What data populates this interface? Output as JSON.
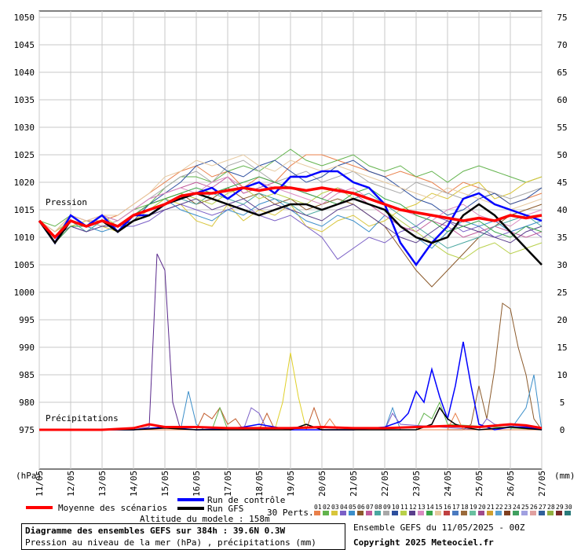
{
  "chart_data": {
    "type": "line",
    "left_axis_label": "(hPa)",
    "right_axis_label": "(mm)",
    "pressure_ticks": [
      975,
      980,
      985,
      990,
      995,
      1000,
      1005,
      1010,
      1015,
      1020,
      1025,
      1030,
      1035,
      1040,
      1045,
      1050
    ],
    "precip_ticks": [
      0,
      5,
      10,
      15,
      20,
      25,
      30,
      35,
      40,
      45,
      50,
      55,
      60,
      65,
      70,
      75
    ],
    "ylim_pressure": [
      975,
      1050
    ],
    "ylim_precip": [
      0,
      75
    ],
    "x_dates": [
      "11/05",
      "12/05",
      "13/05",
      "14/05",
      "15/05",
      "16/05",
      "17/05",
      "18/05",
      "19/05",
      "20/05",
      "21/05",
      "22/05",
      "23/05",
      "24/05",
      "25/05",
      "26/05",
      "27/05"
    ],
    "label_pression": "Pression",
    "label_precip": "Précipitations",
    "x_days_axis": [
      0,
      16
    ],
    "mean_pressure": {
      "x": [
        0,
        0.5,
        1,
        1.5,
        2,
        2.5,
        3,
        3.5,
        4,
        4.5,
        5,
        5.5,
        6,
        6.5,
        7,
        7.5,
        8,
        8.5,
        9,
        9.5,
        10,
        10.5,
        11,
        11.5,
        12,
        12.5,
        13,
        13.5,
        14,
        14.5,
        15,
        15.5,
        16
      ],
      "y": [
        1013,
        1010,
        1013,
        1012,
        1013,
        1012,
        1014,
        1015,
        1016,
        1017.5,
        1018,
        1018,
        1018.5,
        1019,
        1018.5,
        1019,
        1019,
        1018.5,
        1019,
        1018.5,
        1018,
        1017,
        1016,
        1015,
        1014.5,
        1014,
        1013.5,
        1013,
        1013.5,
        1013,
        1014,
        1013.5,
        1014
      ]
    },
    "control_pressure": {
      "x": [
        0,
        0.5,
        1,
        1.5,
        2,
        2.5,
        3,
        3.5,
        4,
        4.5,
        5,
        5.5,
        6,
        6.5,
        7,
        7.5,
        8,
        8.5,
        9,
        9.5,
        10,
        10.5,
        11,
        11.5,
        12,
        12.5,
        13,
        13.5,
        14,
        14.5,
        15,
        15.5,
        16
      ],
      "y": [
        1013,
        1009,
        1014,
        1012,
        1014,
        1011,
        1014,
        1014,
        1016,
        1017,
        1018,
        1019,
        1017,
        1019,
        1020,
        1018,
        1021,
        1021,
        1022,
        1022,
        1020,
        1019,
        1016,
        1009,
        1005,
        1009,
        1012,
        1017,
        1018,
        1016,
        1015,
        1014,
        1013
      ]
    },
    "gfs_pressure": {
      "x": [
        0,
        0.5,
        1,
        1.5,
        2,
        2.5,
        3,
        3.5,
        4,
        4.5,
        5,
        5.5,
        6,
        6.5,
        7,
        7.5,
        8,
        8.5,
        9,
        9.5,
        10,
        10.5,
        11,
        11.5,
        12,
        12.5,
        13,
        13.5,
        14,
        14.5,
        15,
        15.5,
        16
      ],
      "y": [
        1013,
        1009,
        1013,
        1012,
        1013,
        1011,
        1013,
        1014,
        1016,
        1017,
        1018,
        1017,
        1016,
        1015,
        1014,
        1015,
        1016,
        1016,
        1015,
        1016,
        1017,
        1016,
        1015,
        1012,
        1010,
        1009,
        1010,
        1014,
        1016,
        1014,
        1011,
        1008,
        1005
      ]
    },
    "control_precip": {
      "x": [
        0,
        2,
        3,
        4,
        5,
        6,
        6.5,
        7,
        7.5,
        8,
        10,
        11,
        11.5,
        11.75,
        12,
        12.25,
        12.5,
        12.75,
        13,
        13.25,
        13.5,
        13.75,
        14,
        14.5,
        15,
        15.5,
        16
      ],
      "y": [
        0,
        0,
        0,
        0.5,
        0,
        0.2,
        0.5,
        1,
        0.5,
        0,
        0,
        0.5,
        1.5,
        3,
        7,
        5,
        11,
        6,
        2,
        8,
        16,
        8,
        1,
        0,
        0.5,
        0.5,
        0
      ]
    },
    "gfs_precip": {
      "x": [
        0,
        2,
        3,
        4,
        5,
        6,
        7,
        8,
        8.5,
        9,
        10,
        11,
        12,
        12.5,
        12.75,
        13,
        13.25,
        13.5,
        14,
        15,
        16
      ],
      "y": [
        0,
        0,
        0,
        0.3,
        0,
        0,
        0,
        0,
        1,
        0,
        0,
        0,
        0,
        1,
        4,
        2,
        1,
        0.5,
        0,
        0.5,
        0
      ]
    },
    "mean_precip": {
      "x": [
        0,
        1,
        2,
        3,
        3.5,
        4,
        5,
        6,
        7,
        8,
        9,
        10,
        11,
        12,
        13,
        14,
        15,
        15.5,
        16
      ],
      "y": [
        0,
        0,
        0,
        0.3,
        1,
        0.5,
        0.5,
        0.3,
        0.3,
        0.3,
        0.5,
        0.3,
        0.3,
        0.5,
        0.7,
        0.5,
        1,
        0.8,
        0.3
      ]
    },
    "member_pressure": [
      {
        "color": "#e9804b",
        "y": [
          1013,
          1011,
          1014,
          1013,
          1013,
          1014,
          1016,
          1018,
          1020,
          1022,
          1023,
          1021,
          1022,
          1019,
          1021,
          1020,
          1023,
          1025,
          1025,
          1024,
          1023,
          1022,
          1021,
          1022,
          1021,
          1020,
          1018,
          1020,
          1019,
          1018,
          1016,
          1017,
          1018
        ]
      },
      {
        "color": "#62b34c",
        "y": [
          1013,
          1012,
          1014,
          1012,
          1014,
          1013,
          1015,
          1016,
          1019,
          1021,
          1021,
          1020,
          1022,
          1023,
          1022,
          1024,
          1026,
          1024,
          1023,
          1024,
          1025,
          1023,
          1022,
          1023,
          1021,
          1022,
          1020,
          1022,
          1023,
          1022,
          1021,
          1020,
          1021
        ]
      },
      {
        "color": "#d8c53a",
        "y": [
          1013,
          1010,
          1012,
          1013,
          1012,
          1011,
          1013,
          1015,
          1017,
          1016,
          1013,
          1012,
          1016,
          1013,
          1015,
          1014,
          1016,
          1012,
          1011,
          1013,
          1014,
          1012,
          1013,
          1015,
          1016,
          1018,
          1017,
          1019,
          1020,
          1017,
          1018,
          1020,
          1021
        ]
      },
      {
        "color": "#7a5fc6",
        "y": [
          1013,
          1009,
          1012,
          1011,
          1013,
          1012,
          1012,
          1013,
          1015,
          1016,
          1015,
          1014,
          1015,
          1016,
          1014,
          1013,
          1014,
          1012,
          1010,
          1006,
          1008,
          1010,
          1009,
          1011,
          1012,
          1014,
          1013,
          1011,
          1012,
          1010,
          1011,
          1012,
          1010
        ]
      },
      {
        "color": "#3b8ec9",
        "y": [
          1013,
          1010,
          1013,
          1012,
          1011,
          1012,
          1014,
          1016,
          1017,
          1015,
          1014,
          1013,
          1015,
          1014,
          1016,
          1017,
          1015,
          1013,
          1012,
          1014,
          1013,
          1011,
          1014,
          1012,
          1010,
          1008,
          1011,
          1013,
          1012,
          1013,
          1011,
          1012,
          1013
        ]
      },
      {
        "color": "#8b5a2b",
        "y": [
          1013,
          1010,
          1014,
          1012,
          1013,
          1012,
          1014,
          1016,
          1017,
          1018,
          1016,
          1017,
          1019,
          1017,
          1018,
          1016,
          1017,
          1015,
          1016,
          1017,
          1016,
          1014,
          1012,
          1008,
          1004,
          1001,
          1004,
          1007,
          1010,
          1012,
          1014,
          1015,
          1016
        ]
      },
      {
        "color": "#c05a9a",
        "y": [
          1013,
          1011,
          1013,
          1012,
          1014,
          1013,
          1015,
          1017,
          1018,
          1019,
          1020,
          1019,
          1021,
          1018,
          1019,
          1020,
          1019,
          1018,
          1017,
          1019,
          1018,
          1016,
          1014,
          1012,
          1011,
          1013,
          1012,
          1010,
          1011,
          1012,
          1011,
          1010,
          1011
        ]
      },
      {
        "color": "#4aa7a0",
        "y": [
          1013,
          1009,
          1013,
          1011,
          1013,
          1012,
          1013,
          1014,
          1016,
          1017,
          1016,
          1018,
          1017,
          1016,
          1018,
          1017,
          1016,
          1014,
          1015,
          1016,
          1017,
          1018,
          1016,
          1014,
          1012,
          1010,
          1008,
          1009,
          1010,
          1012,
          1013,
          1014,
          1012
        ]
      },
      {
        "color": "#a8a8a8",
        "y": [
          1013,
          1010,
          1014,
          1013,
          1012,
          1013,
          1015,
          1017,
          1019,
          1021,
          1022,
          1020,
          1023,
          1024,
          1022,
          1020,
          1021,
          1022,
          1020,
          1021,
          1022,
          1020,
          1019,
          1018,
          1020,
          1019,
          1018,
          1017,
          1019,
          1018,
          1017,
          1018,
          1019
        ]
      },
      {
        "color": "#2d4f9e",
        "y": [
          1013,
          1010,
          1013,
          1012,
          1013,
          1011,
          1013,
          1016,
          1018,
          1020,
          1023,
          1024,
          1022,
          1021,
          1023,
          1024,
          1022,
          1020,
          1021,
          1023,
          1024,
          1022,
          1021,
          1019,
          1017,
          1016,
          1014,
          1015,
          1017,
          1018,
          1016,
          1017,
          1019
        ]
      },
      {
        "color": "#b8d04a",
        "y": [
          1013,
          1011,
          1013,
          1012,
          1014,
          1012,
          1014,
          1015,
          1017,
          1018,
          1017,
          1016,
          1018,
          1019,
          1017,
          1018,
          1017,
          1016,
          1018,
          1019,
          1017,
          1016,
          1015,
          1013,
          1011,
          1009,
          1007,
          1006,
          1008,
          1009,
          1007,
          1008,
          1009
        ]
      },
      {
        "color": "#5a3e8c",
        "y": [
          1013,
          1010,
          1012,
          1011,
          1012,
          1012,
          1013,
          1014,
          1015,
          1016,
          1017,
          1015,
          1016,
          1017,
          1015,
          1016,
          1015,
          1014,
          1013,
          1015,
          1016,
          1014,
          1012,
          1010,
          1009,
          1011,
          1013,
          1012,
          1011,
          1010,
          1009,
          1011,
          1012
        ]
      },
      {
        "color": "#d98ac0",
        "y": [
          1013,
          1011,
          1014,
          1013,
          1014,
          1013,
          1015,
          1017,
          1018,
          1019,
          1018,
          1020,
          1021,
          1019,
          1020,
          1019,
          1018,
          1017,
          1016,
          1018,
          1019,
          1017,
          1016,
          1015,
          1014,
          1013,
          1015,
          1016,
          1014,
          1013,
          1012,
          1014,
          1015
        ]
      },
      {
        "color": "#3aa64a",
        "y": [
          1013,
          1009,
          1012,
          1012,
          1013,
          1012,
          1014,
          1016,
          1017,
          1018,
          1019,
          1018,
          1019,
          1020,
          1021,
          1020,
          1019,
          1018,
          1017,
          1016,
          1018,
          1019,
          1017,
          1016,
          1014,
          1013,
          1011,
          1012,
          1013,
          1011,
          1010,
          1012,
          1011
        ]
      },
      {
        "color": "#e6c9a0",
        "y": [
          1013,
          1011,
          1014,
          1013,
          1014,
          1014,
          1016,
          1018,
          1021,
          1022,
          1024,
          1023,
          1024,
          1025,
          1023,
          1022,
          1024,
          1023,
          1022,
          1023,
          1022,
          1021,
          1020,
          1019,
          1018,
          1017,
          1019,
          1018,
          1017,
          1016,
          1015,
          1016,
          1017
        ]
      }
    ],
    "member_precip": [
      {
        "color": "#5a2a8c",
        "x": [
          0,
          3,
          3.5,
          3.75,
          4,
          4.25,
          4.5,
          5,
          16
        ],
        "y": [
          0,
          0,
          0.5,
          32,
          29,
          5,
          0,
          0,
          0
        ]
      },
      {
        "color": "#e0d02a",
        "x": [
          0,
          7.5,
          7.75,
          8,
          8.25,
          8.5,
          16
        ],
        "y": [
          0,
          0,
          5,
          14,
          6,
          0,
          0
        ]
      },
      {
        "color": "#8b5a2b",
        "x": [
          0,
          13.5,
          13.75,
          14,
          14.25,
          14.5,
          14.75,
          15,
          15.25,
          15.5,
          15.75,
          16
        ],
        "y": [
          0,
          0,
          1,
          8,
          2,
          11,
          23,
          22,
          15,
          10,
          2,
          0
        ]
      },
      {
        "color": "#3b8ec9",
        "x": [
          0,
          4.5,
          4.75,
          5,
          5.25,
          11,
          11.25,
          11.5,
          15,
          15.5,
          15.75,
          16
        ],
        "y": [
          0,
          0,
          7,
          1,
          0,
          0,
          4,
          0,
          0,
          4,
          10,
          0
        ]
      },
      {
        "color": "#c05a2a",
        "x": [
          0,
          5,
          5.25,
          5.5,
          5.75,
          6,
          6.25,
          6.5,
          7,
          7.25,
          7.5,
          8.5,
          8.75,
          9,
          16
        ],
        "y": [
          0,
          0,
          3,
          2,
          4,
          1,
          2,
          0,
          0,
          3,
          0,
          0,
          4,
          0,
          0
        ]
      },
      {
        "color": "#62b34c",
        "x": [
          0,
          5.5,
          5.75,
          6,
          12,
          12.25,
          12.5,
          12.75,
          13,
          16
        ],
        "y": [
          0,
          0,
          4,
          0,
          0,
          3,
          2,
          5,
          1,
          0
        ]
      },
      {
        "color": "#7a5fc6",
        "x": [
          0,
          6.5,
          6.75,
          7,
          7.25,
          11,
          11.25,
          11.5,
          14,
          14.25,
          14.5,
          16
        ],
        "y": [
          0,
          0,
          4,
          3,
          0,
          0,
          3,
          1,
          0,
          2,
          1,
          0
        ]
      },
      {
        "color": "#e9804b",
        "x": [
          0,
          9,
          9.25,
          9.5,
          13,
          13.25,
          13.5,
          16
        ],
        "y": [
          0,
          0,
          2,
          0,
          0,
          3,
          0,
          0
        ]
      }
    ]
  },
  "legend": {
    "moyenne": "Moyenne des scénarios",
    "controle": "Run de contrôle",
    "gfs": "Run GFS",
    "altitude": "Altitude du modele : 158m",
    "perts": "30 Perts.",
    "pert_numbers": [
      "01",
      "02",
      "03",
      "04",
      "05",
      "06",
      "07",
      "08",
      "09",
      "10",
      "11",
      "12",
      "13",
      "14",
      "15",
      "16",
      "17",
      "18",
      "19",
      "20",
      "21",
      "22",
      "23",
      "24",
      "25",
      "26",
      "27",
      "28",
      "29",
      "30"
    ],
    "pert_colors": [
      "#e9804b",
      "#62b34c",
      "#d8c53a",
      "#7a5fc6",
      "#3b8ec9",
      "#8b5a2b",
      "#c05a9a",
      "#4aa7a0",
      "#a8a8a8",
      "#2d4f9e",
      "#b8d04a",
      "#5a3e8c",
      "#d98ac0",
      "#3aa64a",
      "#e6c9a0",
      "#c04040",
      "#4a7ac0",
      "#9a6a3a",
      "#6ac0a0",
      "#a04a8a",
      "#d0a030",
      "#5aa0d0",
      "#804020",
      "#40a060",
      "#a0a0e0",
      "#e0a0a0",
      "#30609a",
      "#90b040",
      "#7a2a2a",
      "#2a7a7a"
    ]
  },
  "info": {
    "title": "Diagramme des ensembles GEFS sur 384h : 39.6N 0.3W",
    "subtitle": "Pression au niveau de la mer (hPa) , précipitations (mm)",
    "ensemble": "Ensemble GEFS du 11/05/2025 - 00Z",
    "copyright": "Copyright 2025 Meteociel.fr"
  },
  "colors": {
    "mean": "#ff0000",
    "control": "#0000ff",
    "gfs": "#000000",
    "grid": "#c8c8c8"
  }
}
